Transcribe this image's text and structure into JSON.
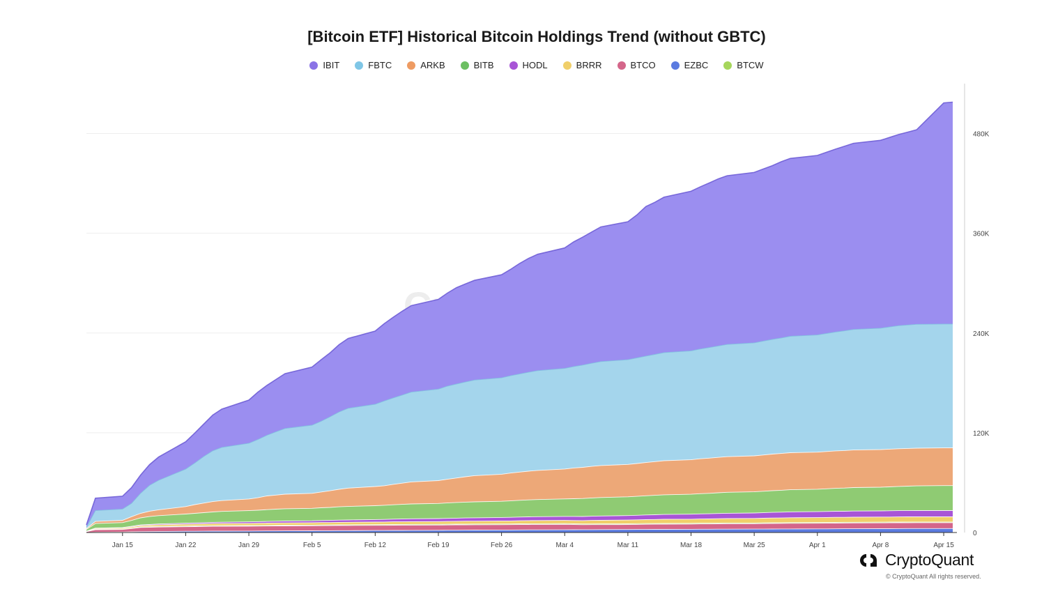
{
  "chart_data": {
    "type": "area",
    "stacked": true,
    "title": "[Bitcoin ETF] Historical Bitcoin Holdings Trend (without GBTC)",
    "xlabel": "",
    "ylabel": "",
    "ylim": [
      0,
      540000
    ],
    "yticks": [
      0,
      120000,
      240000,
      360000,
      480000
    ],
    "ytick_labels": [
      "0",
      "120K",
      "240K",
      "360K",
      "480K"
    ],
    "xticks": [
      {
        "x": 15,
        "label": "Jan 15"
      },
      {
        "x": 22,
        "label": "Jan 22"
      },
      {
        "x": 29,
        "label": "Jan 29"
      },
      {
        "x": 36,
        "label": "Feb 5"
      },
      {
        "x": 43,
        "label": "Feb 12"
      },
      {
        "x": 50,
        "label": "Feb 19"
      },
      {
        "x": 57,
        "label": "Feb 26"
      },
      {
        "x": 64,
        "label": "Mar 4"
      },
      {
        "x": 71,
        "label": "Mar 11"
      },
      {
        "x": 78,
        "label": "Mar 18"
      },
      {
        "x": 85,
        "label": "Mar 25"
      },
      {
        "x": 92,
        "label": "Apr 1"
      },
      {
        "x": 99,
        "label": "Apr 8"
      },
      {
        "x": 106,
        "label": "Apr 15"
      }
    ],
    "x": [
      11,
      12,
      15,
      16,
      17,
      18,
      19,
      22,
      23,
      24,
      25,
      26,
      29,
      30,
      31,
      32,
      33,
      36,
      37,
      38,
      39,
      40,
      43,
      44,
      45,
      46,
      47,
      50,
      51,
      52,
      53,
      54,
      57,
      58,
      59,
      60,
      61,
      64,
      65,
      66,
      67,
      68,
      71,
      72,
      73,
      74,
      75,
      78,
      79,
      80,
      81,
      82,
      85,
      86,
      87,
      88,
      89,
      92,
      93,
      94,
      95,
      96,
      99,
      100,
      101,
      102,
      103,
      106,
      107
    ],
    "series": [
      {
        "name": "EZBC",
        "color": "#5b7be0",
        "values": [
          0,
          300,
          600,
          800,
          1000,
          1100,
          1200,
          1500,
          1550,
          1600,
          1650,
          1700,
          1800,
          1850,
          1900,
          1950,
          2000,
          2100,
          2150,
          2200,
          2250,
          2300,
          2400,
          2450,
          2500,
          2550,
          2600,
          2700,
          2750,
          2800,
          2850,
          2900,
          3000,
          3050,
          3100,
          3150,
          3200,
          3300,
          3350,
          3400,
          3450,
          3500,
          3600,
          3650,
          3700,
          3750,
          3800,
          3850,
          3900,
          3950,
          4000,
          4050,
          4100,
          4150,
          4200,
          4250,
          4300,
          4350,
          4400,
          4450,
          4500,
          4550,
          4600,
          4650,
          4700,
          4750,
          4800,
          4800,
          4800
        ]
      },
      {
        "name": "BTCO",
        "color": "#d4668a",
        "values": [
          1000,
          3000,
          3000,
          4000,
          5000,
          5200,
          5300,
          5500,
          5600,
          5700,
          5800,
          5800,
          5800,
          5900,
          5900,
          6000,
          6000,
          6000,
          6100,
          6100,
          6200,
          6200,
          6200,
          6200,
          6300,
          6300,
          6300,
          6300,
          6300,
          6400,
          6400,
          6400,
          6400,
          6400,
          6500,
          6500,
          6500,
          6500,
          6200,
          6000,
          6000,
          6000,
          6000,
          6100,
          6200,
          6200,
          6300,
          6300,
          6400,
          6400,
          6500,
          6500,
          6500,
          6600,
          6700,
          6700,
          6800,
          6800,
          6800,
          6900,
          6900,
          6900,
          7000,
          7000,
          7000,
          7000,
          7000,
          7000,
          7000
        ]
      },
      {
        "name": "BTCW",
        "color": "#a6d65c",
        "values": [
          0,
          500,
          500,
          600,
          700,
          700,
          800,
          800,
          800,
          800,
          800,
          800,
          800,
          800,
          800,
          800,
          800,
          800,
          800,
          800,
          800,
          800,
          900,
          900,
          900,
          900,
          900,
          900,
          900,
          900,
          900,
          900,
          900,
          900,
          900,
          900,
          900,
          900,
          900,
          900,
          900,
          900,
          900,
          900,
          900,
          900,
          900,
          900,
          900,
          900,
          900,
          900,
          900,
          900,
          900,
          900,
          900,
          900,
          900,
          900,
          900,
          900,
          900,
          900,
          900,
          900,
          900,
          900,
          900
        ]
      },
      {
        "name": "BRRR",
        "color": "#f0cf6a",
        "values": [
          500,
          1000,
          1200,
          1400,
          1600,
          1800,
          2000,
          2200,
          2300,
          2400,
          2500,
          2500,
          2600,
          2600,
          2700,
          2700,
          2800,
          2800,
          2900,
          2900,
          3000,
          3000,
          3100,
          3100,
          3200,
          3200,
          3300,
          3300,
          3400,
          3400,
          3500,
          3500,
          3600,
          3600,
          3700,
          3800,
          3800,
          3900,
          4000,
          4000,
          4200,
          4300,
          4500,
          4600,
          4700,
          4800,
          4900,
          5000,
          5100,
          5100,
          5200,
          5300,
          5400,
          5500,
          5600,
          5700,
          5800,
          5900,
          6000,
          6000,
          6000,
          6100,
          6100,
          6100,
          6200,
          6200,
          6200,
          6200,
          6200
        ]
      },
      {
        "name": "HODL",
        "color": "#a855d6",
        "values": [
          200,
          500,
          600,
          700,
          800,
          900,
          1000,
          1200,
          1300,
          1400,
          1500,
          1600,
          1800,
          1900,
          2000,
          2100,
          2200,
          2400,
          2500,
          2600,
          2700,
          2800,
          3000,
          3100,
          3200,
          3300,
          3400,
          3600,
          3700,
          3800,
          3900,
          4000,
          4200,
          4300,
          4400,
          4500,
          4600,
          4800,
          4900,
          5000,
          5100,
          5200,
          5400,
          5500,
          5600,
          5700,
          5800,
          6000,
          6100,
          6200,
          6300,
          6400,
          6600,
          6700,
          6800,
          6900,
          7000,
          7100,
          7200,
          7300,
          7300,
          7400,
          7400,
          7500,
          7500,
          7500,
          7500,
          7500,
          7500
        ]
      },
      {
        "name": "BITB",
        "color": "#8fcb73",
        "values": [
          2000,
          5500,
          6000,
          7000,
          8500,
          9500,
          10000,
          11000,
          11500,
          12000,
          12500,
          13000,
          13500,
          13800,
          14200,
          14500,
          14800,
          15000,
          15300,
          15600,
          16000,
          16300,
          16700,
          17000,
          17300,
          17600,
          17900,
          18200,
          18500,
          18800,
          19000,
          19200,
          19500,
          19800,
          20100,
          20400,
          20700,
          21000,
          21300,
          21600,
          21900,
          22200,
          22500,
          22800,
          23100,
          23400,
          23700,
          24000,
          24300,
          24600,
          24900,
          25200,
          25500,
          25800,
          26100,
          26400,
          26700,
          27000,
          27300,
          27600,
          27900,
          28200,
          28500,
          28800,
          29100,
          29400,
          29700,
          30000,
          30000
        ]
      },
      {
        "name": "ARKB",
        "color": "#eda878",
        "values": [
          1000,
          2500,
          2800,
          4500,
          5500,
          6500,
          7000,
          9000,
          10500,
          11500,
          12500,
          13000,
          14000,
          15000,
          16500,
          17000,
          17500,
          18000,
          19000,
          20000,
          21000,
          22000,
          23000,
          23500,
          24500,
          25500,
          26500,
          27500,
          28500,
          29500,
          30500,
          31500,
          32500,
          33500,
          34000,
          34500,
          35000,
          36000,
          37000,
          37500,
          38000,
          38500,
          39000,
          39500,
          40000,
          40500,
          41000,
          41500,
          42000,
          42300,
          42600,
          42900,
          43200,
          43600,
          44000,
          44200,
          44500,
          44600,
          44800,
          45000,
          45100,
          45200,
          45300,
          45300,
          45400,
          45400,
          45400,
          45400,
          45400
        ]
      },
      {
        "name": "FBTC",
        "color": "#a4d5ec",
        "values": [
          1500,
          13000,
          13500,
          16000,
          24000,
          31000,
          35500,
          45000,
          50000,
          56000,
          61000,
          64000,
          67000,
          70000,
          73000,
          76000,
          79000,
          82000,
          85000,
          89000,
          93000,
          96000,
          99000,
          102000,
          104000,
          106000,
          108000,
          110000,
          112000,
          113000,
          114000,
          115000,
          116000,
          117000,
          118000,
          119000,
          120000,
          121000,
          122000,
          123000,
          124000,
          125000,
          126000,
          127000,
          128000,
          129000,
          130000,
          131000,
          132000,
          133000,
          134000,
          135000,
          136000,
          137000,
          138000,
          139000,
          140000,
          141000,
          142000,
          143000,
          144000,
          145000,
          146000,
          147000,
          148000,
          148500,
          149000,
          149000,
          149000
        ]
      },
      {
        "name": "IBIT",
        "color": "#9b8ef0",
        "values": [
          3000,
          15000,
          15500,
          19000,
          22000,
          25000,
          28000,
          33000,
          36000,
          39000,
          43000,
          46000,
          52000,
          57000,
          60000,
          63000,
          66000,
          70000,
          74000,
          77000,
          81000,
          84000,
          88000,
          93000,
          97000,
          101000,
          104000,
          108000,
          112000,
          116000,
          118000,
          120000,
          124000,
          128000,
          133000,
          137000,
          140000,
          145000,
          150000,
          154000,
          158000,
          162000,
          166000,
          172000,
          180000,
          183000,
          187000,
          192000,
          195000,
          198000,
          201000,
          203000,
          205000,
          207000,
          209000,
          212000,
          214000,
          216000,
          218000,
          220000,
          222000,
          224000,
          226000,
          228000,
          230000,
          232000,
          234000,
          266000,
          267000
        ]
      }
    ],
    "legend": [
      {
        "name": "IBIT",
        "color": "#8a73e6"
      },
      {
        "name": "FBTC",
        "color": "#7fc6e6"
      },
      {
        "name": "ARKB",
        "color": "#ee9b62"
      },
      {
        "name": "BITB",
        "color": "#6cbf62"
      },
      {
        "name": "HODL",
        "color": "#a855d6"
      },
      {
        "name": "BRRR",
        "color": "#f0cf6a"
      },
      {
        "name": "BTCO",
        "color": "#d4668a"
      },
      {
        "name": "EZBC",
        "color": "#5b7be0"
      },
      {
        "name": "BTCW",
        "color": "#a6d65c"
      }
    ],
    "legend_position": "top-center",
    "grid": true
  },
  "watermark": "CryptoQuant",
  "brand": {
    "name": "CryptoQuant",
    "copyright": "© CryptoQuant All rights reserved."
  }
}
